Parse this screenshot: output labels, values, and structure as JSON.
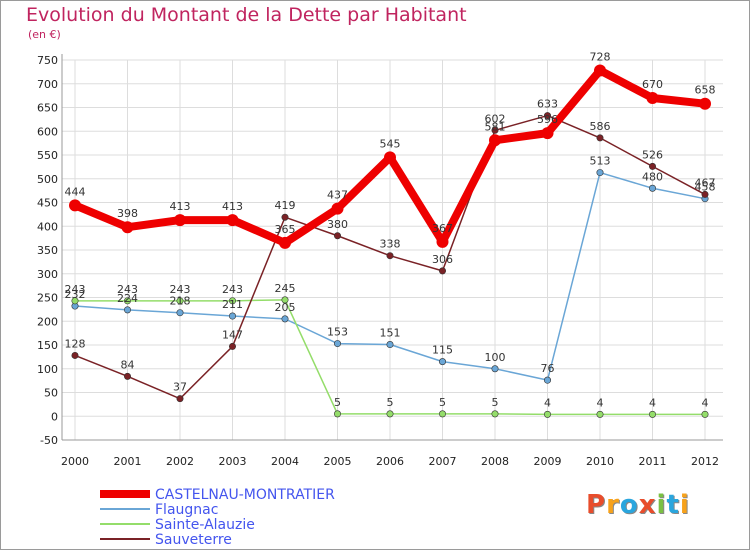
{
  "header": {
    "title": "Evolution du Montant de la Dette par Habitant",
    "subtitle": "(en €)"
  },
  "logo": {
    "text": "Proxiti",
    "colors": [
      "#e84d2c",
      "#f7a21b",
      "#2aa6de",
      "#e84d2c",
      "#7ac043",
      "#2aa6de",
      "#f7a21b"
    ]
  },
  "chart_data": {
    "type": "line",
    "title": "Evolution du Montant de la Dette par Habitant",
    "subtitle": "(en €)",
    "xlabel": "",
    "ylabel": "",
    "ylim": [
      -50,
      750
    ],
    "yticks": [
      -50,
      0,
      50,
      100,
      150,
      200,
      250,
      300,
      350,
      400,
      450,
      500,
      550,
      600,
      650,
      700,
      750
    ],
    "grid": true,
    "legend_position": "bottom-left",
    "x": [
      "2000",
      "2001",
      "2002",
      "2003",
      "2004",
      "2005",
      "2006",
      "2007",
      "2008",
      "2009",
      "2010",
      "2011",
      "2012"
    ],
    "series": [
      {
        "name": "CASTELNAU-MONTRATIER",
        "color": "#ee0000",
        "width": 8,
        "values": [
          444,
          398,
          413,
          413,
          365,
          437,
          545,
          367,
          581,
          596,
          728,
          670,
          658
        ]
      },
      {
        "name": "Flaugnac",
        "color": "#6aa6d6",
        "width": 1.5,
        "values": [
          232,
          224,
          218,
          211,
          205,
          153,
          151,
          115,
          100,
          76,
          513,
          480,
          458
        ]
      },
      {
        "name": "Sainte-Alauzie",
        "color": "#94dd6a",
        "width": 1.5,
        "values": [
          243,
          243,
          243,
          243,
          245,
          5,
          5,
          5,
          5,
          4,
          4,
          4,
          4
        ]
      },
      {
        "name": "Sauveterre",
        "color": "#7a2226",
        "width": 1.5,
        "values": [
          128,
          84,
          37,
          147,
          419,
          380,
          338,
          306,
          602,
          633,
          586,
          526,
          467
        ]
      }
    ]
  }
}
